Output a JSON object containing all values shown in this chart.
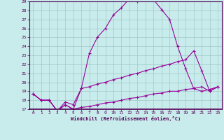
{
  "xlabel": "Windchill (Refroidissement éolien,°C)",
  "bg_color": "#c8ecec",
  "grid_color": "#a0c8c8",
  "line_color": "#990099",
  "xlim": [
    -0.5,
    23.5
  ],
  "ylim": [
    17,
    29
  ],
  "xticks": [
    0,
    1,
    2,
    3,
    4,
    5,
    6,
    7,
    8,
    9,
    10,
    11,
    12,
    13,
    14,
    15,
    16,
    17,
    18,
    19,
    20,
    21,
    22,
    23
  ],
  "yticks": [
    17,
    18,
    19,
    20,
    21,
    22,
    23,
    24,
    25,
    26,
    27,
    28,
    29
  ],
  "curve1_x": [
    0,
    1,
    2,
    3,
    4,
    5,
    6,
    7,
    8,
    9,
    10,
    11,
    12,
    13,
    14,
    15,
    16,
    17,
    18,
    19,
    20,
    21,
    22,
    23
  ],
  "curve1_y": [
    18.7,
    18.0,
    18.0,
    16.8,
    17.5,
    17.0,
    19.3,
    23.2,
    25.0,
    26.0,
    27.5,
    28.3,
    29.3,
    29.0,
    29.2,
    29.2,
    28.1,
    27.0,
    24.0,
    21.5,
    19.3,
    19.0,
    19.2,
    19.5
  ],
  "curve2_x": [
    0,
    1,
    2,
    3,
    4,
    5,
    6,
    7,
    8,
    9,
    10,
    11,
    12,
    13,
    14,
    15,
    16,
    17,
    18,
    19,
    20,
    21,
    22,
    23
  ],
  "curve2_y": [
    18.7,
    18.0,
    18.0,
    16.8,
    17.8,
    17.5,
    19.3,
    19.5,
    19.8,
    20.0,
    20.3,
    20.5,
    20.8,
    21.0,
    21.3,
    21.5,
    21.8,
    22.0,
    22.3,
    22.5,
    23.5,
    21.3,
    19.0,
    19.5
  ],
  "curve3_x": [
    0,
    1,
    2,
    3,
    4,
    5,
    6,
    7,
    8,
    9,
    10,
    11,
    12,
    13,
    14,
    15,
    16,
    17,
    18,
    19,
    20,
    21,
    22,
    23
  ],
  "curve3_y": [
    18.7,
    18.0,
    18.0,
    16.8,
    17.5,
    17.0,
    17.2,
    17.3,
    17.5,
    17.7,
    17.8,
    18.0,
    18.2,
    18.3,
    18.5,
    18.7,
    18.8,
    19.0,
    19.0,
    19.2,
    19.3,
    19.5,
    19.0,
    19.5
  ]
}
